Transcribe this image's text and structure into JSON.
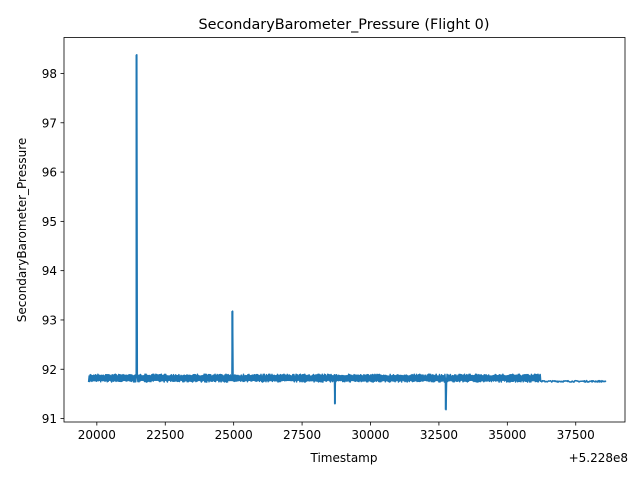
{
  "chart_data": {
    "type": "line",
    "title": "SecondaryBarometer_Pressure (Flight 0)",
    "xlabel": "Timestamp",
    "ylabel": "SecondaryBarometer_Pressure",
    "x_offset_label": "+5.228e8",
    "x_offset": 522800000,
    "xlim": [
      18800,
      39300
    ],
    "ylim": [
      90.93,
      98.73
    ],
    "x_ticks": [
      20000,
      22500,
      25000,
      27500,
      30000,
      32500,
      35000,
      37500
    ],
    "x_tick_labels": [
      "20000",
      "22500",
      "25000",
      "27500",
      "30000",
      "32500",
      "35000",
      "37500"
    ],
    "y_ticks": [
      91,
      92,
      93,
      94,
      95,
      96,
      97,
      98
    ],
    "y_tick_labels": [
      "91",
      "92",
      "93",
      "94",
      "95",
      "96",
      "97",
      "98"
    ],
    "grid": false,
    "legend": "none",
    "series": [
      {
        "color": "#1f77b4",
        "noise_band": {
          "x_start": 19700,
          "x_end": 36200,
          "y_low": 91.74,
          "y_high": 91.9
        },
        "tail": {
          "x_start": 36200,
          "x_end": 38600,
          "y_low": 91.74,
          "y_high": 91.77
        },
        "spikes": [
          {
            "x": 21450,
            "y": 98.38
          },
          {
            "x": 24950,
            "y": 93.18
          },
          {
            "x": 28700,
            "y": 91.3
          },
          {
            "x": 32750,
            "y": 91.18
          }
        ]
      }
    ]
  }
}
